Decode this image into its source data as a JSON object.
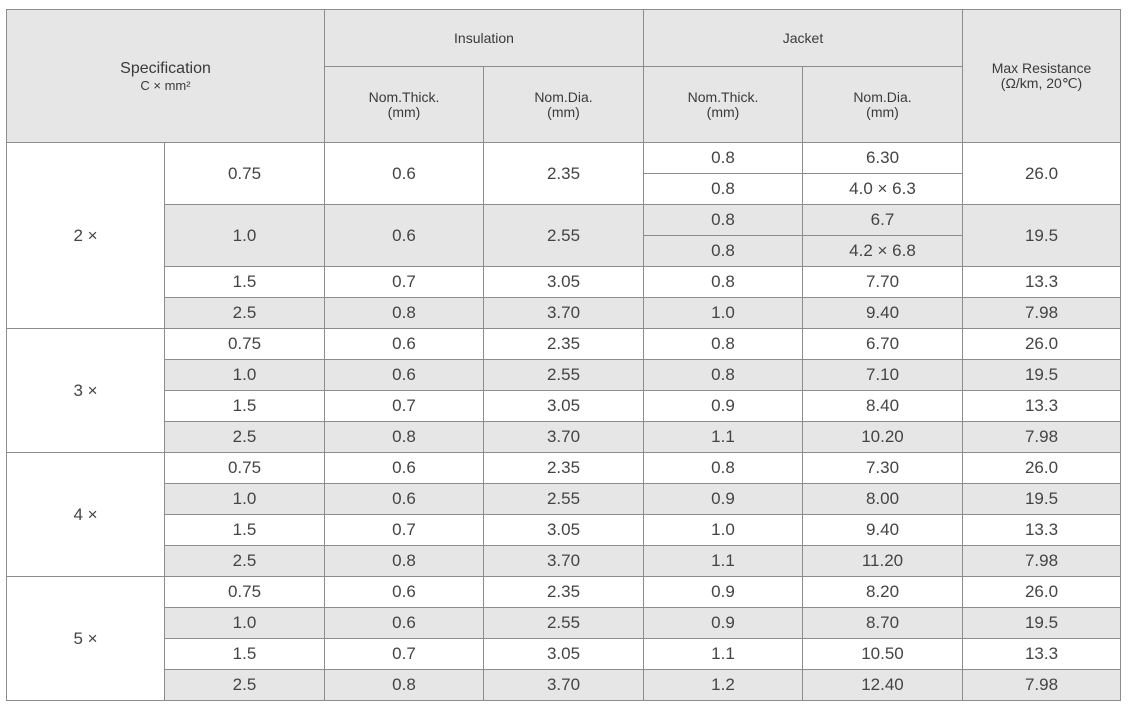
{
  "header": {
    "spec_title": "Specification",
    "spec_sub": "C × mm²",
    "insulation": "Insulation",
    "jacket": "Jacket",
    "max_res_title": "Max Resistance",
    "max_res_sub": "(Ω/km, 20℃)",
    "ins_thick_1": "Nom.Thick.",
    "ins_thick_2": "(mm)",
    "ins_dia_1": "Nom.Dia.",
    "ins_dia_2": "(mm)",
    "jac_thick_1": "Nom.Thick.",
    "jac_thick_2": "(mm)",
    "jac_dia_1": "Nom.Dia.",
    "jac_dia_2": "(mm)"
  },
  "groups": [
    {
      "cores": "2 ×",
      "rows": [
        {
          "size": "0.75",
          "ins_thick": "0.6",
          "ins_dia": "2.35",
          "jacket": [
            {
              "thick": "0.8",
              "dia": "6.30"
            },
            {
              "thick": "0.8",
              "dia": "4.0 × 6.3"
            }
          ],
          "res": "26.0"
        },
        {
          "size": "1.0",
          "ins_thick": "0.6",
          "ins_dia": "2.55",
          "jacket": [
            {
              "thick": "0.8",
              "dia": "6.7"
            },
            {
              "thick": "0.8",
              "dia": "4.2 × 6.8"
            }
          ],
          "res": "19.5"
        },
        {
          "size": "1.5",
          "ins_thick": "0.7",
          "ins_dia": "3.05",
          "jacket": [
            {
              "thick": "0.8",
              "dia": "7.70"
            }
          ],
          "res": "13.3"
        },
        {
          "size": "2.5",
          "ins_thick": "0.8",
          "ins_dia": "3.70",
          "jacket": [
            {
              "thick": "1.0",
              "dia": "9.40"
            }
          ],
          "res": "7.98"
        }
      ]
    },
    {
      "cores": "3 ×",
      "rows": [
        {
          "size": "0.75",
          "ins_thick": "0.6",
          "ins_dia": "2.35",
          "jacket": [
            {
              "thick": "0.8",
              "dia": "6.70"
            }
          ],
          "res": "26.0"
        },
        {
          "size": "1.0",
          "ins_thick": "0.6",
          "ins_dia": "2.55",
          "jacket": [
            {
              "thick": "0.8",
              "dia": "7.10"
            }
          ],
          "res": "19.5"
        },
        {
          "size": "1.5",
          "ins_thick": "0.7",
          "ins_dia": "3.05",
          "jacket": [
            {
              "thick": "0.9",
              "dia": "8.40"
            }
          ],
          "res": "13.3"
        },
        {
          "size": "2.5",
          "ins_thick": "0.8",
          "ins_dia": "3.70",
          "jacket": [
            {
              "thick": "1.1",
              "dia": "10.20"
            }
          ],
          "res": "7.98"
        }
      ]
    },
    {
      "cores": "4 ×",
      "rows": [
        {
          "size": "0.75",
          "ins_thick": "0.6",
          "ins_dia": "2.35",
          "jacket": [
            {
              "thick": "0.8",
              "dia": "7.30"
            }
          ],
          "res": "26.0"
        },
        {
          "size": "1.0",
          "ins_thick": "0.6",
          "ins_dia": "2.55",
          "jacket": [
            {
              "thick": "0.9",
              "dia": "8.00"
            }
          ],
          "res": "19.5"
        },
        {
          "size": "1.5",
          "ins_thick": "0.7",
          "ins_dia": "3.05",
          "jacket": [
            {
              "thick": "1.0",
              "dia": "9.40"
            }
          ],
          "res": "13.3"
        },
        {
          "size": "2.5",
          "ins_thick": "0.8",
          "ins_dia": "3.70",
          "jacket": [
            {
              "thick": "1.1",
              "dia": "11.20"
            }
          ],
          "res": "7.98"
        }
      ]
    },
    {
      "cores": "5 ×",
      "rows": [
        {
          "size": "0.75",
          "ins_thick": "0.6",
          "ins_dia": "2.35",
          "jacket": [
            {
              "thick": "0.9",
              "dia": "8.20"
            }
          ],
          "res": "26.0"
        },
        {
          "size": "1.0",
          "ins_thick": "0.6",
          "ins_dia": "2.55",
          "jacket": [
            {
              "thick": "0.9",
              "dia": "8.70"
            }
          ],
          "res": "19.5"
        },
        {
          "size": "1.5",
          "ins_thick": "0.7",
          "ins_dia": "3.05",
          "jacket": [
            {
              "thick": "1.1",
              "dia": "10.50"
            }
          ],
          "res": "13.3"
        },
        {
          "size": "2.5",
          "ins_thick": "0.8",
          "ins_dia": "3.70",
          "jacket": [
            {
              "thick": "1.2",
              "dia": "12.40"
            }
          ],
          "res": "7.98"
        }
      ]
    }
  ],
  "colors": {
    "header_bg": "#e6e6e6",
    "stripe_bg": "#e6e6e6",
    "border": "#8c8c8c",
    "text": "#444444"
  }
}
